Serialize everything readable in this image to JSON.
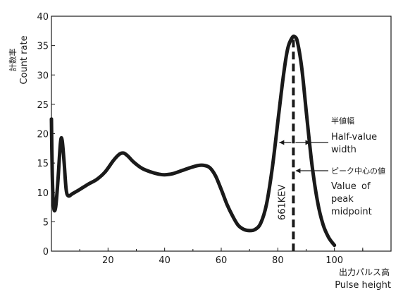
{
  "chart_data": {
    "type": "line",
    "ylabel_jp": "計数率",
    "ylabel_en": "Count rate",
    "xlabel_jp": "出力パルス高",
    "xlabel_en": "Pulse height",
    "xlim": [
      0,
      120
    ],
    "ylim": [
      0,
      40
    ],
    "x_ticks": [
      20,
      40,
      60,
      80,
      100
    ],
    "y_ticks": [
      0,
      5,
      10,
      15,
      20,
      25,
      30,
      35,
      40
    ],
    "grid": false,
    "series": [
      {
        "x": [
          0,
          0.3,
          0.8,
          1.5,
          2.3,
          3.2,
          3.8,
          4.5,
          5.2,
          6.0,
          7.5,
          10,
          13,
          16,
          19,
          22,
          24,
          25.5,
          27,
          29,
          32,
          35,
          38,
          40,
          43,
          46,
          49,
          52,
          54,
          56,
          58,
          60,
          62,
          64,
          66,
          68,
          70,
          72,
          74,
          76,
          78,
          80,
          82,
          83.5,
          85,
          86,
          87,
          88.5,
          90,
          92,
          94,
          96,
          98,
          100
        ],
        "y": [
          22.5,
          13,
          7.5,
          7.5,
          12,
          18.5,
          18.8,
          15,
          10.5,
          9.4,
          9.8,
          10.5,
          11.4,
          12.2,
          13.5,
          15.5,
          16.5,
          16.7,
          16.2,
          15.2,
          14.1,
          13.5,
          13.1,
          13.0,
          13.2,
          13.7,
          14.2,
          14.6,
          14.6,
          14.2,
          12.8,
          10.5,
          8.0,
          6.0,
          4.4,
          3.7,
          3.5,
          3.7,
          4.8,
          8.0,
          14,
          22,
          30,
          34.5,
          36.3,
          36.5,
          35.5,
          31,
          24,
          15,
          8.5,
          4.5,
          2.3,
          1.0
        ]
      }
    ],
    "peak_marker": {
      "x": 85.5,
      "label": "661KEV"
    },
    "half_width_marker": {
      "x_start": 80.5,
      "x_end": 91.5,
      "y": 18.5
    },
    "annotations": [
      {
        "jp": "半値幅",
        "en_line1": "Half-value",
        "en_line2": "width"
      },
      {
        "jp": "ピーク中心の値",
        "en_line1": "Value",
        "en_line1b": "of",
        "en_line2": "peak",
        "en_line3": "midpoint"
      }
    ]
  }
}
